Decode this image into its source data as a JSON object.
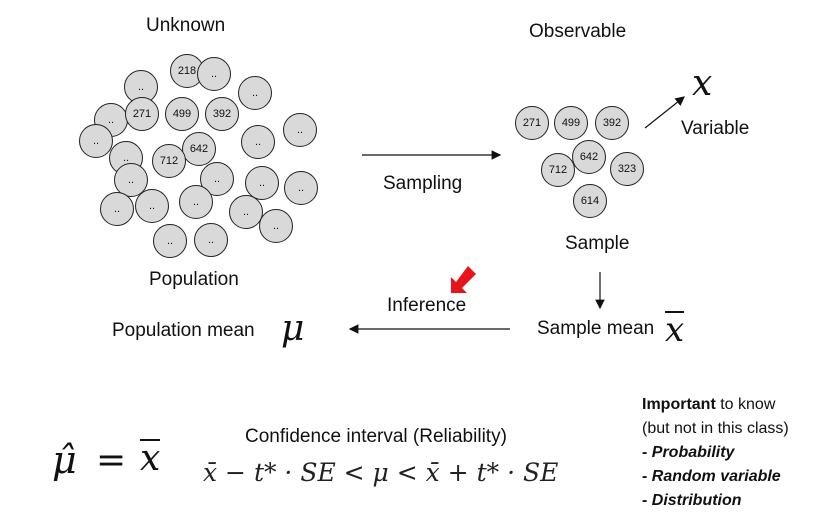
{
  "labels": {
    "unknown": "Unknown",
    "observable": "Observable",
    "population": "Population",
    "sample": "Sample",
    "sampling": "Sampling",
    "inference": "Inference",
    "variable": "Variable",
    "population_mean": "Population mean",
    "sample_mean": "Sample mean",
    "confidence_interval": "Confidence interval (Reliability)"
  },
  "symbols": {
    "x": "x",
    "mu": "μ",
    "mu_hat": "μ̂",
    "equals": "=",
    "x_bar": "x"
  },
  "formula": {
    "ci": "x̄ − t* · SE < μ < x̄ + t* · SE"
  },
  "population_balls": [
    "..",
    "218",
    "..",
    "..",
    "..",
    "271",
    "499",
    "392",
    "..",
    "..",
    "..",
    "642",
    "712",
    "..",
    "..",
    "..",
    "..",
    "..",
    "..",
    "..",
    "..",
    "..",
    "..",
    "..",
    ".."
  ],
  "sample_balls": [
    "271",
    "499",
    "392",
    "642",
    "712",
    "323",
    "614"
  ],
  "note": {
    "important_bold": "Important",
    "important_rest": " to know",
    "line2": "(but not in this class)",
    "items": [
      "- Probability",
      "- Random variable",
      "- Distribution"
    ]
  },
  "colors": {
    "ball_fill": "#d9d9d9",
    "arrow_red": "#e8141b"
  }
}
